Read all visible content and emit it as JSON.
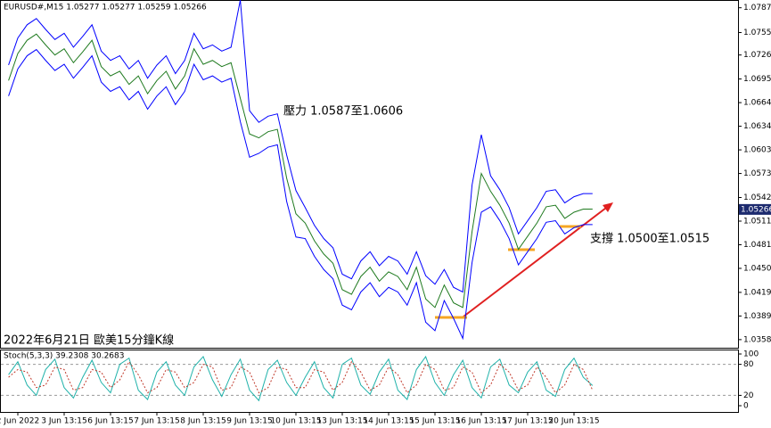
{
  "chart_data": [
    {
      "type": "line",
      "title": "EURUSD#,M15  1.05277 1.05277 1.05259 1.05266",
      "annotations": [
        "壓力 1.0587至1.0606",
        "支撐 1.0500至1.0515",
        "2022年6月21日 歐美15分鐘K線"
      ],
      "last_price": {
        "value": 1.05266,
        "label": "1.05266"
      },
      "categories": [
        null,
        "2 Jun 2022",
        null,
        null,
        null,
        null,
        "3 Jun 13:15",
        null,
        null,
        null,
        null,
        "6 Jun 13:15",
        null,
        null,
        null,
        null,
        "7 Jun 13:15",
        null,
        null,
        null,
        null,
        "8 Jun 13:15",
        null,
        null,
        null,
        null,
        "9 Jun 13:15",
        null,
        null,
        null,
        null,
        "10 Jun 13:15",
        null,
        null,
        null,
        null,
        "13 Jun 13:15",
        null,
        null,
        null,
        null,
        "14 Jun 13:15",
        null,
        null,
        null,
        null,
        "15 Jun 13:15",
        null,
        null,
        null,
        null,
        "16 Jun 13:15",
        null,
        null,
        null,
        null,
        "17 Jun 13:15",
        null,
        null,
        null,
        null,
        "20 Jun 13:15",
        null,
        null
      ],
      "series": [
        {
          "color": "#1f7a1f",
          "values": [
            1.0693,
            1.0728,
            1.0745,
            1.0753,
            1.0739,
            1.0726,
            1.0734,
            1.0716,
            1.073,
            1.0745,
            1.0711,
            1.0699,
            1.0705,
            1.0688,
            1.0699,
            1.0676,
            1.0693,
            1.0705,
            1.0682,
            1.0699,
            1.0734,
            1.0714,
            1.0719,
            1.0711,
            1.0716,
            1.067,
            1.0624,
            1.0619,
            1.0627,
            1.063,
            1.0567,
            1.0521,
            1.0509,
            1.0486,
            1.0469,
            1.0457,
            1.0423,
            1.0417,
            1.044,
            1.0452,
            1.0434,
            1.0446,
            1.044,
            1.0423,
            1.0452,
            1.0411,
            1.04,
            1.0429,
            1.0406,
            1.04,
            1.0498,
            1.0573,
            1.055,
            1.0532,
            1.0509,
            1.0475,
            1.0492,
            1.0509,
            1.053,
            1.0532,
            1.0515,
            1.0523,
            1.0527,
            1.0527
          ]
        },
        {
          "color": "#0000ff",
          "values": [
            1.0713,
            1.0748,
            1.0765,
            1.0773,
            1.0759,
            1.0746,
            1.0754,
            1.0736,
            1.075,
            1.0765,
            1.0731,
            1.0719,
            1.0725,
            1.0708,
            1.0719,
            1.0696,
            1.0713,
            1.0725,
            1.0702,
            1.0719,
            1.0754,
            1.0734,
            1.0739,
            1.0731,
            1.0736,
            1.0797,
            1.0654,
            1.0639,
            1.0647,
            1.065,
            1.0597,
            1.0551,
            1.0529,
            1.0506,
            1.0489,
            1.0477,
            1.0443,
            1.0437,
            1.046,
            1.0472,
            1.0454,
            1.0466,
            1.046,
            1.0443,
            1.0472,
            1.0441,
            1.043,
            1.0449,
            1.0426,
            1.042,
            1.0558,
            1.0623,
            1.057,
            1.0552,
            1.0529,
            1.0495,
            1.0512,
            1.0529,
            1.055,
            1.0552,
            1.0535,
            1.0543,
            1.0547,
            1.0547
          ]
        },
        {
          "color": "#0000ff",
          "values": [
            1.0673,
            1.0708,
            1.0725,
            1.0733,
            1.0719,
            1.0706,
            1.0714,
            1.0696,
            1.071,
            1.0725,
            1.0691,
            1.0679,
            1.0685,
            1.0668,
            1.0679,
            1.0656,
            1.0673,
            1.0685,
            1.0662,
            1.0679,
            1.0714,
            1.0694,
            1.0699,
            1.0691,
            1.0696,
            1.064,
            1.0594,
            1.0599,
            1.0607,
            1.061,
            1.0537,
            1.0491,
            1.0489,
            1.0466,
            1.0449,
            1.0437,
            1.0403,
            1.0397,
            1.042,
            1.0432,
            1.0414,
            1.0426,
            1.042,
            1.0403,
            1.0432,
            1.0381,
            1.037,
            1.0409,
            1.0386,
            1.036,
            1.0458,
            1.0523,
            1.053,
            1.0512,
            1.0489,
            1.0455,
            1.0472,
            1.0489,
            1.051,
            1.0512,
            1.0495,
            1.0503,
            1.0507,
            1.0507
          ]
        }
      ],
      "ylim": [
        1.0348,
        1.0797
      ],
      "yticks": [
        {
          "value": 1.0787,
          "label": "1.07870"
        },
        {
          "value": 1.0755,
          "label": "1.07550"
        },
        {
          "value": 1.0726,
          "label": "1.07260"
        },
        {
          "value": 1.0695,
          "label": "1.06950"
        },
        1.06645,
        {
          "value": 1.0634,
          "label": "1.06340"
        },
        1.06035,
        {
          "value": 1.0573,
          "label": "1.05730"
        },
        {
          "value": 1.0542,
          "label": "1.05420"
        },
        1.05115,
        {
          "value": 1.0481,
          "label": "1.04810"
        },
        1.04505,
        1.04195,
        {
          "value": 1.0389,
          "label": "1.03890"
        },
        1.03585
      ]
    },
    {
      "type": "line",
      "title": "Stoch(5,3,3) 39.2308 30.2683",
      "series": [
        {
          "color": "#20b2aa",
          "values": [
            60,
            85,
            40,
            20,
            70,
            90,
            35,
            15,
            55,
            88,
            45,
            25,
            80,
            92,
            30,
            12,
            65,
            85,
            40,
            20,
            75,
            95,
            50,
            18,
            60,
            90,
            30,
            10,
            70,
            88,
            45,
            20,
            55,
            85,
            35,
            15,
            80,
            92,
            40,
            22,
            65,
            90,
            30,
            12,
            70,
            95,
            45,
            20,
            60,
            88,
            35,
            15,
            75,
            90,
            40,
            25,
            65,
            85,
            30,
            18,
            70,
            92,
            55,
            39
          ]
        },
        {
          "color": "#c0392b",
          "dash": true,
          "values": [
            55,
            70,
            65,
            35,
            40,
            75,
            70,
            30,
            35,
            70,
            65,
            35,
            50,
            85,
            60,
            25,
            35,
            70,
            65,
            35,
            45,
            80,
            75,
            30,
            35,
            75,
            65,
            25,
            35,
            75,
            70,
            35,
            35,
            70,
            65,
            30,
            45,
            85,
            65,
            30,
            40,
            75,
            60,
            25,
            40,
            80,
            70,
            30,
            35,
            75,
            65,
            25,
            40,
            80,
            65,
            30,
            40,
            75,
            55,
            25,
            40,
            80,
            70,
            30
          ]
        }
      ],
      "ylim": [
        0,
        100
      ],
      "yticks": [
        100,
        80,
        20,
        0
      ],
      "levels": [
        80,
        20
      ]
    }
  ]
}
